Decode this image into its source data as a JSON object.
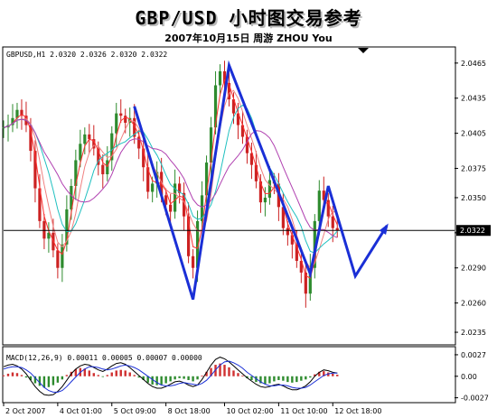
{
  "heading": {
    "title": "GBP/USD 小时图交易参考",
    "subtitle": "2007年10月15日    周游 ZHOU You"
  },
  "chart_data": {
    "type": "candlestick",
    "symbol_label": "GBPUSD,H1  2.0320 2.0326 2.0320 2.0322",
    "price_axis": {
      "ticks": [
        2.0465,
        2.0435,
        2.0405,
        2.0375,
        2.035,
        2.032,
        2.029,
        2.026,
        2.0235
      ],
      "tick_labels": [
        "2.0465",
        "2.0435",
        "2.0405",
        "2.0375",
        "2.0350",
        "2.0320",
        "2.0290",
        "2.0260",
        "2.0235"
      ],
      "range": [
        2.0225,
        2.0478
      ],
      "current_price": 2.0322,
      "current_price_label": "2.0322"
    },
    "time_axis": {
      "range": [
        0,
        100
      ],
      "ticks": [
        {
          "label": "2 Oct 2007",
          "x": 0
        },
        {
          "label": "4 Oct 01:00",
          "x": 12
        },
        {
          "label": "5 Oct 09:00",
          "x": 24
        },
        {
          "label": "8 Oct 18:00",
          "x": 36
        },
        {
          "label": "10 Oct 02:00",
          "x": 49
        },
        {
          "label": "11 Oct 10:00",
          "x": 61
        },
        {
          "label": "12 Oct 18:00",
          "x": 73
        }
      ]
    },
    "price_bars": {
      "x": [
        0,
        1,
        2,
        3,
        4,
        5,
        6,
        7,
        8,
        9,
        10,
        11,
        12,
        13,
        14,
        15,
        16,
        17,
        18,
        19,
        20,
        21,
        22,
        23,
        24,
        25,
        26,
        27,
        28,
        29,
        30,
        31,
        32,
        33,
        34,
        35,
        36,
        37,
        38,
        39,
        40,
        41,
        42,
        43,
        44,
        45,
        46,
        47,
        48,
        49,
        50,
        51,
        52,
        53,
        54,
        55,
        56,
        57,
        58,
        59,
        60,
        61,
        62,
        63,
        64,
        65,
        66,
        67,
        68,
        69,
        70,
        71,
        72,
        73,
        74
      ],
      "values": [
        2.041,
        2.0412,
        2.0418,
        2.0425,
        2.042,
        2.0412,
        2.039,
        2.0358,
        2.033,
        2.0315,
        2.032,
        2.0305,
        2.029,
        2.031,
        2.034,
        2.036,
        2.0382,
        2.0396,
        2.0404,
        2.04,
        2.0392,
        2.0378,
        2.037,
        2.0382,
        2.0405,
        2.0422,
        2.042,
        2.0414,
        2.0418,
        2.0402,
        2.0392,
        2.0376,
        2.0355,
        2.0362,
        2.0372,
        2.0352,
        2.0344,
        2.0338,
        2.0362,
        2.0354,
        2.0334,
        2.03,
        2.029,
        2.033,
        2.0352,
        2.038,
        2.041,
        2.0446,
        2.0458,
        2.0448,
        2.0434,
        2.0422,
        2.0412,
        2.0402,
        2.0388,
        2.0378,
        2.0364,
        2.0346,
        2.035,
        2.0365,
        2.0362,
        2.0342,
        2.0324,
        2.0318,
        2.031,
        2.0296,
        2.0286,
        2.0268,
        2.029,
        2.033,
        2.0356,
        2.0348,
        2.0334,
        2.0324,
        2.0322
      ]
    },
    "forecast_path": {
      "x": [
        29,
        42,
        50,
        68,
        72,
        78,
        85
      ],
      "y": [
        2.0428,
        2.0263,
        2.0463,
        2.0285,
        2.036,
        2.0283,
        2.0326
      ]
    },
    "macd": {
      "label": "MACD(12,26,9) 0.00011 0.00005 0.00007 0.00000",
      "ticks": [
        0.0027,
        0.0,
        -0.0027
      ],
      "tick_labels": [
        "0.0027",
        "0.00",
        "-0.0027"
      ],
      "range": [
        -0.0032,
        0.0036
      ],
      "histogram": [
        3e-05,
        8e-05,
        0.00012,
        0.0001,
        4e-05,
        -4e-05,
        -0.00012,
        -0.00022,
        -0.0003,
        -0.00036,
        -0.00034,
        -0.00028,
        -0.0002,
        -0.0001,
        4e-05,
        0.00014,
        0.00022,
        0.00026,
        0.00024,
        0.00018,
        0.0001,
        4e-05,
        -2e-05,
        4e-05,
        0.00012,
        0.00018,
        0.0002,
        0.00018,
        0.00012,
        4e-05,
        -4e-05,
        -0.00012,
        -0.0002,
        -0.00026,
        -0.00028,
        -0.00026,
        -0.00022,
        -0.00016,
        -0.0001,
        -6e-05,
        -8e-05,
        -0.00012,
        -0.00016,
        -0.0001,
        2e-05,
        0.00014,
        0.00026,
        0.00036,
        0.0004,
        0.00036,
        0.00028,
        0.00018,
        0.0001,
        2e-05,
        -6e-05,
        -0.00012,
        -0.00018,
        -0.00022,
        -0.00024,
        -0.00022,
        -0.00016,
        -0.00012,
        -0.00014,
        -0.00018,
        -0.0002,
        -0.00018,
        -0.00014,
        -0.0001,
        -4e-05,
        6e-05,
        0.00014,
        0.00016,
        0.00012,
        8e-05,
        5e-05
      ],
      "macd_line": [
        0.0012,
        0.0014,
        0.0015,
        0.0013,
        0.0009,
        0.0003,
        -0.0005,
        -0.0013,
        -0.0019,
        -0.0023,
        -0.0024,
        -0.0023,
        -0.0019,
        -0.0013,
        -0.0005,
        0.0003,
        0.0009,
        0.0013,
        0.0015,
        0.0014,
        0.0011,
        0.0008,
        0.0006,
        0.0009,
        0.0013,
        0.0016,
        0.0017,
        0.0015,
        0.0011,
        0.0006,
        0.0001,
        -0.0004,
        -0.0009,
        -0.0013,
        -0.0015,
        -0.0015,
        -0.0013,
        -0.001,
        -0.0007,
        -0.0006,
        -0.0008,
        -0.0011,
        -0.0013,
        -0.0011,
        -0.0004,
        0.0005,
        0.0014,
        0.0021,
        0.0024,
        0.0022,
        0.0018,
        0.0013,
        0.0008,
        0.0003,
        -0.0002,
        -0.0006,
        -0.001,
        -0.0013,
        -0.0014,
        -0.0013,
        -0.0011,
        -0.001,
        -0.0012,
        -0.0015,
        -0.0017,
        -0.0017,
        -0.0015,
        -0.0012,
        -0.0007,
        0.0,
        0.0005,
        0.0008,
        0.0007,
        0.0005,
        0.0004
      ],
      "signal_line": [
        0.0009,
        0.0011,
        0.0012,
        0.0012,
        0.0011,
        0.0008,
        0.0004,
        -0.0002,
        -0.0008,
        -0.0014,
        -0.0018,
        -0.002,
        -0.002,
        -0.0018,
        -0.0013,
        -0.0007,
        -0.0001,
        0.0005,
        0.0009,
        0.0012,
        0.0012,
        0.0011,
        0.0009,
        0.0008,
        0.0009,
        0.0011,
        0.0013,
        0.0014,
        0.0013,
        0.0011,
        0.0008,
        0.0004,
        0.0,
        -0.0004,
        -0.0008,
        -0.0011,
        -0.0012,
        -0.0012,
        -0.0011,
        -0.0009,
        -0.0008,
        -0.0009,
        -0.001,
        -0.0011,
        -0.0009,
        -0.0005,
        0.0001,
        0.0008,
        0.0014,
        0.0018,
        0.0019,
        0.0017,
        0.0014,
        0.001,
        0.0005,
        0.0001,
        -0.0003,
        -0.0007,
        -0.001,
        -0.0012,
        -0.0012,
        -0.0011,
        -0.0011,
        -0.0012,
        -0.0014,
        -0.0015,
        -0.0015,
        -0.0014,
        -0.0011,
        -0.0007,
        -0.0003,
        0.0001,
        0.0003,
        0.0004,
        0.0004
      ]
    }
  }
}
